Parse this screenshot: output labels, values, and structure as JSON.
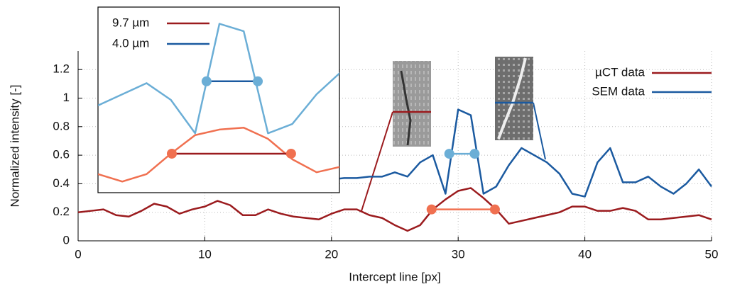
{
  "chart_data": [
    {
      "type": "line",
      "x_label": "Intercept line [px]",
      "y_label": "Normalized intensity [-]",
      "x": [
        0,
        1,
        2,
        3,
        4,
        5,
        6,
        7,
        8,
        9,
        10,
        11,
        12,
        13,
        14,
        15,
        16,
        17,
        18,
        19,
        20,
        21,
        22,
        23,
        24,
        25,
        26,
        27,
        28,
        29,
        30,
        31,
        32,
        33,
        34,
        35,
        36,
        37,
        38,
        39,
        40,
        41,
        42,
        43,
        44,
        45,
        46,
        47,
        48,
        49,
        50
      ],
      "series": [
        {
          "name": "µCT data",
          "color": "#9b1b1e",
          "values": [
            0.2,
            0.21,
            0.22,
            0.18,
            0.17,
            0.21,
            0.26,
            0.24,
            0.19,
            0.22,
            0.24,
            0.28,
            0.25,
            0.18,
            0.18,
            0.22,
            0.19,
            0.17,
            0.16,
            0.15,
            0.19,
            0.22,
            0.22,
            0.18,
            0.16,
            0.11,
            0.07,
            0.11,
            0.22,
            0.29,
            0.35,
            0.37,
            0.3,
            0.22,
            0.12,
            0.14,
            0.16,
            0.18,
            0.2,
            0.24,
            0.24,
            0.21,
            0.21,
            0.23,
            0.21,
            0.15,
            0.15,
            0.16,
            0.17,
            0.18,
            0.15
          ]
        },
        {
          "name": "SEM data",
          "color": "#1b5aa0",
          "values": [
            null,
            null,
            null,
            null,
            null,
            null,
            null,
            null,
            null,
            null,
            null,
            null,
            null,
            null,
            null,
            null,
            null,
            null,
            null,
            null,
            0.43,
            0.44,
            0.44,
            0.45,
            0.45,
            0.48,
            0.45,
            0.55,
            0.6,
            0.33,
            0.92,
            0.88,
            0.33,
            0.38,
            0.53,
            0.65,
            0.6,
            0.55,
            0.47,
            0.33,
            0.31,
            0.55,
            0.65,
            0.41,
            0.41,
            0.45,
            0.38,
            0.33,
            0.4,
            0.5,
            0.38
          ]
        }
      ],
      "markers": [
        {
          "x": [
            27.9,
            32.9
          ],
          "y": 0.22,
          "color": "#f07050"
        },
        {
          "x": [
            29.3,
            31.3
          ],
          "y": 0.61,
          "color": "#6baed6"
        }
      ],
      "xlim": [
        0,
        50
      ],
      "ylim": [
        0,
        1.33
      ],
      "xticks": [
        0,
        10,
        20,
        30,
        40,
        50
      ],
      "yticks": [
        0,
        0.2,
        0.4,
        0.6,
        0.8,
        1,
        1.2
      ],
      "grid": true
    },
    {
      "type": "line",
      "x": [
        0,
        1,
        2,
        3,
        4,
        5,
        6,
        7,
        8,
        9,
        10
      ],
      "series": [
        {
          "name": "9.7 µm",
          "color": "#f07050",
          "legend_color": "#9b1b1e",
          "values": [
            0.1,
            0.06,
            0.1,
            0.21,
            0.31,
            0.34,
            0.35,
            0.29,
            0.18,
            0.11,
            0.14
          ]
        },
        {
          "name": "4.0 µm",
          "color": "#6baed6",
          "legend_color": "#1b5aa0",
          "values": [
            0.47,
            0.53,
            0.59,
            0.5,
            0.32,
            0.91,
            0.87,
            0.32,
            0.37,
            0.53,
            0.65
          ]
        }
      ],
      "markers": [
        {
          "x": [
            3.04,
            7.95
          ],
          "y": 0.21,
          "color": "#f07050",
          "line_color": "#9b1b1e"
        },
        {
          "x": [
            4.47,
            6.58
          ],
          "y": 0.6,
          "color": "#6baed6",
          "line_color": "#1b5aa0"
        }
      ],
      "xlim": [
        0,
        10
      ],
      "ylim": [
        0,
        1
      ]
    }
  ]
}
